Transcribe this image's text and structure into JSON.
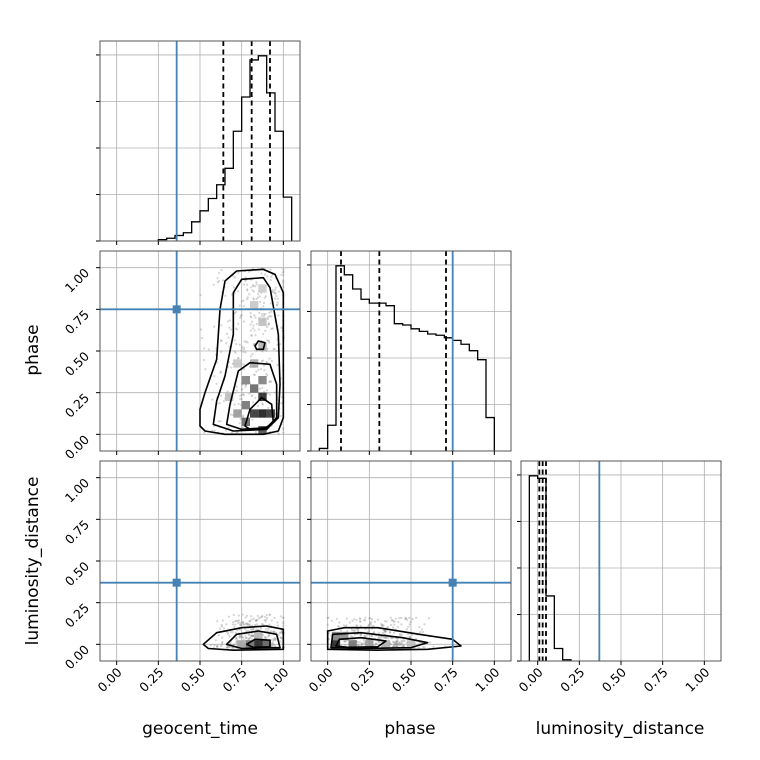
{
  "chart_data": {
    "type": "corner",
    "parameters": [
      "geocent_time",
      "phase",
      "luminosity_distance"
    ],
    "truths": {
      "geocent_time": 0.36,
      "phase": 0.75,
      "luminosity_distance": 0.37
    },
    "axis_range": [
      -0.1,
      1.1
    ],
    "tick_values": [
      0,
      0.25,
      0.5,
      0.75,
      1
    ],
    "tick_labels": [
      "0.00",
      "0.25",
      "0.50",
      "0.75",
      "1.00"
    ],
    "grid": true,
    "histograms": [
      {
        "parameter": "geocent_time",
        "bin_edges": [
          0.25,
          0.3,
          0.35,
          0.4,
          0.45,
          0.5,
          0.55,
          0.6,
          0.65,
          0.7,
          0.75,
          0.8,
          0.85,
          0.9,
          0.95,
          1.0,
          1.05
        ],
        "counts": [
          1,
          2,
          4,
          6,
          14,
          22,
          31,
          41,
          53,
          80,
          105,
          132,
          135,
          108,
          80,
          32
        ],
        "quantiles": [
          0.64,
          0.81,
          0.92
        ]
      },
      {
        "parameter": "phase",
        "bin_edges": [
          -0.05,
          0.0,
          0.05,
          0.1,
          0.15,
          0.2,
          0.25,
          0.3,
          0.35,
          0.4,
          0.45,
          0.5,
          0.55,
          0.6,
          0.65,
          0.7,
          0.75,
          0.8,
          0.85,
          0.9,
          0.95,
          1.0
        ],
        "counts": [
          2,
          20,
          144,
          137,
          126,
          118,
          115,
          115,
          113,
          99,
          98,
          95,
          93,
          91,
          90,
          88,
          86,
          83,
          78,
          71,
          26
        ],
        "quantiles": [
          0.08,
          0.31,
          0.71
        ]
      },
      {
        "parameter": "luminosity_distance",
        "bin_edges": [
          -0.05,
          0.0,
          0.05,
          0.1,
          0.15,
          0.2
        ],
        "counts": [
          148,
          146,
          52,
          10,
          1
        ],
        "quantiles": [
          0.01,
          0.03,
          0.05
        ]
      }
    ],
    "panels_2d": [
      {
        "x": "geocent_time",
        "y": "phase",
        "scatter": {
          "x_range": [
            0.2,
            1.0
          ],
          "y_range": [
            0.0,
            1.0
          ],
          "x_center": 0.82
        },
        "density": [
          {
            "x": 0.875,
            "y": 0.125,
            "level": 0.9
          },
          {
            "x": 0.825,
            "y": 0.125,
            "level": 0.8
          },
          {
            "x": 0.925,
            "y": 0.125,
            "level": 0.8
          },
          {
            "x": 0.875,
            "y": 0.225,
            "level": 0.85
          },
          {
            "x": 0.825,
            "y": 0.275,
            "level": 0.6
          },
          {
            "x": 0.775,
            "y": 0.325,
            "level": 0.5
          },
          {
            "x": 0.775,
            "y": 0.175,
            "level": 0.55
          },
          {
            "x": 0.875,
            "y": 0.325,
            "level": 0.5
          },
          {
            "x": 0.775,
            "y": 0.075,
            "level": 0.6
          },
          {
            "x": 0.875,
            "y": 0.025,
            "level": 0.7
          },
          {
            "x": 0.725,
            "y": 0.125,
            "level": 0.4
          },
          {
            "x": 0.825,
            "y": 0.425,
            "level": 0.35
          },
          {
            "x": 0.875,
            "y": 0.525,
            "level": 0.3
          },
          {
            "x": 0.875,
            "y": 0.675,
            "level": 0.25
          },
          {
            "x": 0.825,
            "y": 0.775,
            "level": 0.22
          },
          {
            "x": 0.875,
            "y": 0.875,
            "level": 0.2
          },
          {
            "x": 0.725,
            "y": 0.425,
            "level": 0.22
          },
          {
            "x": 0.675,
            "y": 0.225,
            "level": 0.25
          }
        ],
        "contours": [
          [
            [
              0.5,
              0.05
            ],
            [
              0.5,
              0.15
            ],
            [
              0.53,
              0.25
            ],
            [
              0.6,
              0.45
            ],
            [
              0.62,
              0.75
            ],
            [
              0.65,
              0.92
            ],
            [
              0.72,
              0.98
            ],
            [
              0.88,
              0.99
            ],
            [
              0.95,
              0.96
            ],
            [
              1.0,
              0.85
            ],
            [
              1.0,
              0.1
            ],
            [
              0.97,
              0.02
            ],
            [
              0.88,
              0.0
            ],
            [
              0.65,
              0.0
            ],
            [
              0.53,
              0.02
            ]
          ],
          [
            [
              0.58,
              0.06
            ],
            [
              0.6,
              0.2
            ],
            [
              0.65,
              0.35
            ],
            [
              0.7,
              0.6
            ],
            [
              0.7,
              0.85
            ],
            [
              0.75,
              0.93
            ],
            [
              0.88,
              0.94
            ],
            [
              0.92,
              0.88
            ],
            [
              0.97,
              0.6
            ],
            [
              0.98,
              0.3
            ],
            [
              0.97,
              0.1
            ],
            [
              0.9,
              0.03
            ],
            [
              0.7,
              0.02
            ]
          ],
          [
            [
              0.66,
              0.06
            ],
            [
              0.68,
              0.18
            ],
            [
              0.73,
              0.38
            ],
            [
              0.8,
              0.43
            ],
            [
              0.92,
              0.42
            ],
            [
              0.96,
              0.3
            ],
            [
              0.96,
              0.1
            ],
            [
              0.9,
              0.04
            ],
            [
              0.75,
              0.03
            ]
          ],
          [
            [
              0.83,
              0.53
            ],
            [
              0.85,
              0.56
            ],
            [
              0.89,
              0.55
            ],
            [
              0.88,
              0.51
            ],
            [
              0.84,
              0.51
            ]
          ],
          [
            [
              0.77,
              0.05
            ],
            [
              0.8,
              0.15
            ],
            [
              0.87,
              0.22
            ],
            [
              0.93,
              0.18
            ],
            [
              0.94,
              0.07
            ],
            [
              0.88,
              0.03
            ],
            [
              0.8,
              0.03
            ]
          ]
        ]
      },
      {
        "x": "geocent_time",
        "y": "luminosity_distance",
        "scatter": {
          "x_range": [
            0.3,
            1.0
          ],
          "y_range": [
            -0.02,
            0.18
          ],
          "x_center": 0.83
        },
        "density": [
          {
            "x": 0.85,
            "y": 0.0,
            "level": 0.85
          },
          {
            "x": 0.8,
            "y": 0.0,
            "level": 0.55
          },
          {
            "x": 0.9,
            "y": 0.0,
            "level": 0.6
          },
          {
            "x": 0.75,
            "y": 0.0,
            "level": 0.35
          },
          {
            "x": 0.85,
            "y": 0.05,
            "level": 0.3
          }
        ],
        "contours": [
          [
            [
              0.52,
              0.0
            ],
            [
              0.6,
              0.07
            ],
            [
              0.75,
              0.1
            ],
            [
              0.9,
              0.11
            ],
            [
              1.0,
              0.09
            ],
            [
              1.0,
              -0.03
            ],
            [
              0.7,
              -0.035
            ],
            [
              0.55,
              -0.025
            ]
          ],
          [
            [
              0.66,
              0.0
            ],
            [
              0.72,
              0.06
            ],
            [
              0.85,
              0.08
            ],
            [
              0.96,
              0.06
            ],
            [
              0.98,
              -0.02
            ],
            [
              0.75,
              -0.025
            ]
          ],
          [
            [
              0.78,
              0.0
            ],
            [
              0.83,
              0.03
            ],
            [
              0.92,
              0.025
            ],
            [
              0.92,
              -0.015
            ],
            [
              0.82,
              -0.018
            ]
          ]
        ]
      },
      {
        "x": "phase",
        "y": "luminosity_distance",
        "scatter": {
          "x_range": [
            0.0,
            1.0
          ],
          "y_range": [
            -0.02,
            0.16
          ],
          "x_center": 0.3
        },
        "density": [
          {
            "x": 0.05,
            "y": 0.0,
            "level": 0.85
          },
          {
            "x": 0.15,
            "y": 0.0,
            "level": 0.55
          },
          {
            "x": 0.1,
            "y": 0.05,
            "level": 0.45
          },
          {
            "x": 0.25,
            "y": 0.0,
            "level": 0.4
          },
          {
            "x": 0.35,
            "y": 0.0,
            "level": 0.3
          },
          {
            "x": 0.5,
            "y": 0.0,
            "level": 0.25
          },
          {
            "x": 0.05,
            "y": 0.05,
            "level": 0.5
          }
        ],
        "contours": [
          [
            [
              0.0,
              -0.03
            ],
            [
              0.0,
              0.08
            ],
            [
              0.1,
              0.1
            ],
            [
              0.3,
              0.1
            ],
            [
              0.55,
              0.06
            ],
            [
              0.75,
              0.03
            ],
            [
              0.8,
              -0.01
            ],
            [
              0.6,
              -0.03
            ],
            [
              0.3,
              -0.035
            ]
          ],
          [
            [
              0.02,
              -0.02
            ],
            [
              0.03,
              0.06
            ],
            [
              0.2,
              0.07
            ],
            [
              0.45,
              0.04
            ],
            [
              0.6,
              0.01
            ],
            [
              0.5,
              -0.02
            ],
            [
              0.2,
              -0.025
            ]
          ],
          [
            [
              0.05,
              -0.01
            ],
            [
              0.07,
              0.03
            ],
            [
              0.2,
              0.04
            ],
            [
              0.35,
              0.02
            ],
            [
              0.3,
              -0.015
            ],
            [
              0.12,
              -0.018
            ]
          ]
        ]
      }
    ]
  }
}
